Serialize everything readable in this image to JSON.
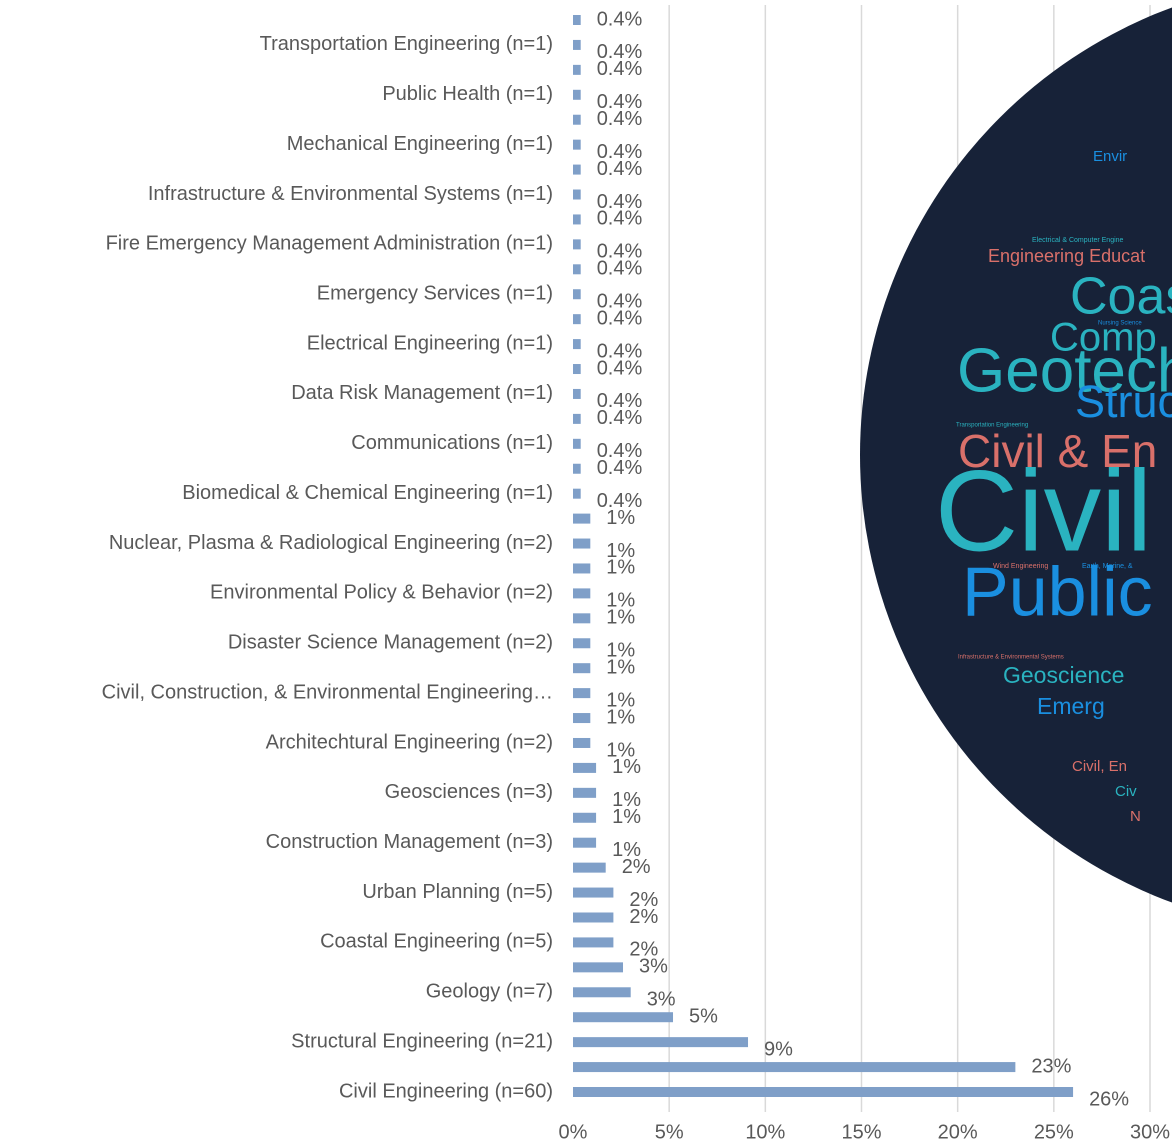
{
  "chart_data": {
    "type": "bar",
    "orientation": "horizontal",
    "color": "#7f9fc8",
    "grid": true,
    "categories": [
      null,
      "Transportation Engineering (n=1)",
      null,
      "Public Health (n=1)",
      null,
      "Mechanical Engineering (n=1)",
      null,
      "Infrastructure & Environmental Systems (n=1)",
      null,
      "Fire Emergency Management Administration (n=1)",
      null,
      "Emergency Services (n=1)",
      null,
      "Electrical Engineering (n=1)",
      null,
      "Data Risk Management (n=1)",
      null,
      "Communications (n=1)",
      null,
      "Biomedical & Chemical Engineering (n=1)",
      null,
      "Nuclear, Plasma & Radiological Engineering (n=2)",
      null,
      "Environmental Policy & Behavior (n=2)",
      null,
      "Disaster Science Management (n=2)",
      null,
      "Civil, Construction, & Environmental Engineering…",
      null,
      "Architechtural Engineering (n=2)",
      null,
      "Geosciences (n=3)",
      null,
      "Construction Management (n=3)",
      null,
      "Urban Planning (n=5)",
      null,
      "Coastal Engineering (n=5)",
      null,
      "Geology (n=7)",
      null,
      "Structural Engineering (n=21)",
      null,
      "Civil Engineering (n=60)"
    ],
    "values": [
      0.4,
      0.4,
      0.4,
      0.4,
      0.4,
      0.4,
      0.4,
      0.4,
      0.4,
      0.4,
      0.4,
      0.4,
      0.4,
      0.4,
      0.4,
      0.4,
      0.4,
      0.4,
      0.4,
      0.4,
      0.9,
      0.9,
      0.9,
      0.9,
      0.9,
      0.9,
      0.9,
      0.9,
      0.9,
      0.9,
      1.2,
      1.2,
      1.2,
      1.2,
      1.7,
      2.1,
      2.1,
      2.1,
      2.6,
      3.0,
      5.2,
      9.1,
      23,
      26
    ],
    "value_labels": [
      "0.4%",
      "0.4%",
      "0.4%",
      "0.4%",
      "0.4%",
      "0.4%",
      "0.4%",
      "0.4%",
      "0.4%",
      "0.4%",
      "0.4%",
      "0.4%",
      "0.4%",
      "0.4%",
      "0.4%",
      "0.4%",
      "0.4%",
      "0.4%",
      "0.4%",
      "0.4%",
      "1%",
      "1%",
      "1%",
      "1%",
      "1%",
      "1%",
      "1%",
      "1%",
      "1%",
      "1%",
      "1%",
      "1%",
      "1%",
      "1%",
      "2%",
      "2%",
      "2%",
      "2%",
      "3%",
      "3%",
      "5%",
      "9%",
      "23%",
      "26%"
    ],
    "xlim": [
      0,
      30
    ],
    "xticks": [
      {
        "value": 0,
        "label": "0%"
      },
      {
        "value": 5,
        "label": "5%"
      },
      {
        "value": 10,
        "label": "10%"
      },
      {
        "value": 15,
        "label": "15%"
      },
      {
        "value": 20,
        "label": "20%"
      },
      {
        "value": 25,
        "label": "25%"
      },
      {
        "value": 30,
        "label": "30%"
      }
    ]
  },
  "word_cloud": {
    "background": "#172238",
    "words": [
      {
        "text": "Envir",
        "color": "#1a8fe0"
      },
      {
        "text": "Electrical & Computer Engine",
        "color": "#2ab3c0"
      },
      {
        "text": "Engineering Educat",
        "color": "#d9706a"
      },
      {
        "text": "Coas",
        "color": "#2ab3c0"
      },
      {
        "text": "Nursing Science",
        "color": "#1a8fe0"
      },
      {
        "text": "Comp",
        "color": "#2ab3c0"
      },
      {
        "text": "Geotech",
        "color": "#2ab3c0"
      },
      {
        "text": "Struc",
        "color": "#1a8fe0"
      },
      {
        "text": "Transportation Engineering",
        "color": "#2ab3c0"
      },
      {
        "text": "Civil & En",
        "color": "#d9706a"
      },
      {
        "text": "Civil I",
        "color": "#2ab3c0"
      },
      {
        "text": "Wind Engineering",
        "color": "#d9706a"
      },
      {
        "text": "Earth, Marine, &",
        "color": "#1a8fe0"
      },
      {
        "text": "Public P",
        "color": "#1a8fe0"
      },
      {
        "text": "Infrastructure & Environmental Systems",
        "color": "#d9706a"
      },
      {
        "text": "Geoscience",
        "color": "#2ab3c0"
      },
      {
        "text": "Emerg",
        "color": "#1a8fe0"
      },
      {
        "text": "Civil, En",
        "color": "#d9706a"
      },
      {
        "text": "Civ",
        "color": "#2ab3c0"
      },
      {
        "text": "N",
        "color": "#d9706a"
      }
    ]
  }
}
